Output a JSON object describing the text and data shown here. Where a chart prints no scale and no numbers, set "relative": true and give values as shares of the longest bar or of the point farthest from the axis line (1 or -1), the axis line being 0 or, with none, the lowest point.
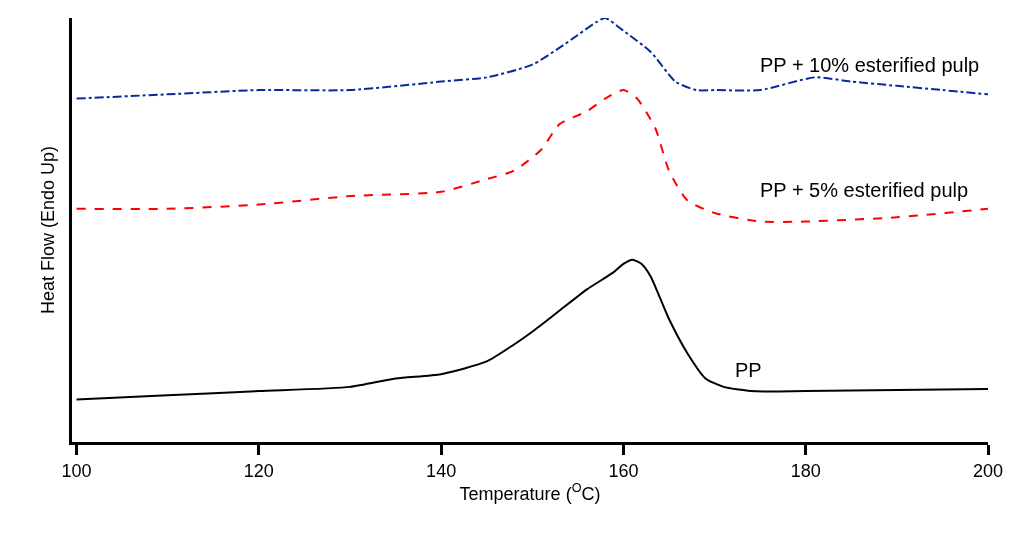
{
  "chart_data": {
    "type": "line",
    "relative": true,
    "xlabel": "Temperature ($^{O}$C)",
    "ylabel": "Heat Flow (Endo Up)",
    "xlim": [
      99.5,
      200
    ],
    "xticks": [
      100,
      120,
      140,
      160,
      180,
      200
    ],
    "series": [
      {
        "name": "PP + 10% esterified pulp",
        "color": "#0a2a9a",
        "line_style": "dashdot",
        "x": [
          100,
          110,
          120,
          130,
          140,
          145,
          150,
          153,
          155,
          157,
          158,
          160,
          163,
          165.7,
          168,
          170,
          175,
          181,
          185,
          190,
          195,
          200
        ],
        "values": [
          0.81,
          0.82,
          0.83,
          0.83,
          0.85,
          0.86,
          0.89,
          0.93,
          0.96,
          0.99,
          1.0,
          0.97,
          0.92,
          0.85,
          0.83,
          0.83,
          0.83,
          0.86,
          0.85,
          0.84,
          0.83,
          0.82
        ]
      },
      {
        "name": "PP + 5% esterified pulp",
        "color": "#ff0000",
        "line_style": "dashed",
        "x": [
          100,
          110,
          120,
          130,
          140,
          145,
          148,
          151,
          153,
          156,
          158,
          160,
          161.5,
          163.5,
          165,
          167,
          170,
          175,
          180,
          190,
          200
        ],
        "values": [
          0.55,
          0.55,
          0.56,
          0.58,
          0.59,
          0.62,
          0.64,
          0.69,
          0.75,
          0.78,
          0.81,
          0.83,
          0.81,
          0.74,
          0.64,
          0.57,
          0.54,
          0.52,
          0.52,
          0.53,
          0.55
        ]
      },
      {
        "name": "PP",
        "color": "#000000",
        "line_style": "solid",
        "x": [
          100,
          110,
          120,
          130,
          135,
          140,
          145,
          148,
          150,
          153,
          156,
          158.9,
          160,
          161,
          162,
          163,
          165,
          167,
          169,
          171,
          174,
          180,
          200
        ],
        "values": [
          0.1,
          0.11,
          0.12,
          0.13,
          0.15,
          0.16,
          0.19,
          0.23,
          0.26,
          0.31,
          0.36,
          0.4,
          0.42,
          0.43,
          0.42,
          0.39,
          0.29,
          0.21,
          0.15,
          0.13,
          0.12,
          0.12,
          0.125
        ]
      }
    ]
  }
}
